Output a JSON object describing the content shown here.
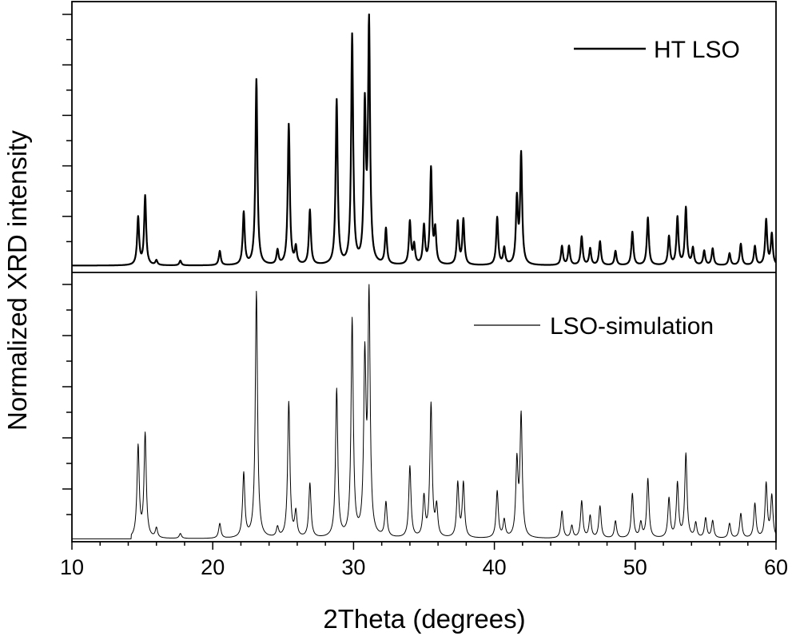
{
  "chart_data": {
    "type": "line",
    "xlabel": "2Theta (degrees)",
    "ylabel": "Normalized XRD intensity",
    "xlim": [
      10,
      60
    ],
    "xticks": [
      10,
      20,
      30,
      40,
      50,
      60
    ],
    "x_minor_step": 2,
    "ylim": [
      0,
      1
    ],
    "y_ticklabels_shown": false,
    "grid": false,
    "legend_location": "top-right of each panel",
    "line_color": "#000000",
    "panels": [
      {
        "legend": "HT LSO",
        "line_weight": "thick",
        "baseline": 0.005,
        "series": [
          {
            "name": "HT LSO",
            "peaks": [
              [
                14.7,
                0.2
              ],
              [
                15.2,
                0.29
              ],
              [
                16.0,
                0.02
              ],
              [
                17.7,
                0.02
              ],
              [
                20.5,
                0.06
              ],
              [
                22.2,
                0.22
              ],
              [
                23.1,
                0.78
              ],
              [
                24.6,
                0.06
              ],
              [
                25.4,
                0.59
              ],
              [
                25.9,
                0.07
              ],
              [
                26.9,
                0.23
              ],
              [
                28.8,
                0.69
              ],
              [
                29.9,
                0.96
              ],
              [
                30.8,
                0.64
              ],
              [
                31.1,
                1.0
              ],
              [
                32.3,
                0.15
              ],
              [
                34.0,
                0.18
              ],
              [
                34.3,
                0.08
              ],
              [
                35.0,
                0.16
              ],
              [
                35.5,
                0.4
              ],
              [
                35.8,
                0.14
              ],
              [
                37.4,
                0.18
              ],
              [
                37.8,
                0.19
              ],
              [
                40.2,
                0.2
              ],
              [
                40.7,
                0.07
              ],
              [
                41.6,
                0.27
              ],
              [
                41.9,
                0.46
              ],
              [
                44.8,
                0.08
              ],
              [
                45.3,
                0.08
              ],
              [
                46.2,
                0.12
              ],
              [
                46.8,
                0.07
              ],
              [
                47.5,
                0.1
              ],
              [
                48.6,
                0.06
              ],
              [
                49.8,
                0.14
              ],
              [
                50.9,
                0.2
              ],
              [
                52.4,
                0.12
              ],
              [
                53.0,
                0.2
              ],
              [
                53.6,
                0.24
              ],
              [
                54.1,
                0.07
              ],
              [
                54.9,
                0.06
              ],
              [
                55.5,
                0.07
              ],
              [
                56.7,
                0.05
              ],
              [
                57.5,
                0.09
              ],
              [
                58.5,
                0.08
              ],
              [
                59.3,
                0.19
              ],
              [
                59.7,
                0.13
              ]
            ]
          }
        ]
      },
      {
        "legend": "LSO-simulation",
        "line_weight": "thin",
        "baseline": 0.005,
        "series": [
          {
            "name": "LSO-simulation",
            "peaks": [
              [
                14.7,
                0.37
              ],
              [
                15.2,
                0.42
              ],
              [
                16.0,
                0.04
              ],
              [
                17.7,
                0.02
              ],
              [
                20.5,
                0.06
              ],
              [
                22.2,
                0.26
              ],
              [
                23.1,
                1.0
              ],
              [
                24.6,
                0.04
              ],
              [
                25.4,
                0.55
              ],
              [
                25.9,
                0.1
              ],
              [
                26.9,
                0.22
              ],
              [
                28.8,
                0.6
              ],
              [
                29.9,
                0.88
              ],
              [
                30.8,
                0.7
              ],
              [
                31.1,
                0.96
              ],
              [
                32.3,
                0.14
              ],
              [
                34.0,
                0.29
              ],
              [
                35.0,
                0.16
              ],
              [
                35.5,
                0.54
              ],
              [
                35.9,
                0.12
              ],
              [
                37.4,
                0.22
              ],
              [
                37.8,
                0.22
              ],
              [
                40.2,
                0.19
              ],
              [
                40.7,
                0.07
              ],
              [
                41.6,
                0.3
              ],
              [
                41.9,
                0.49
              ],
              [
                44.8,
                0.11
              ],
              [
                45.5,
                0.05
              ],
              [
                46.2,
                0.15
              ],
              [
                46.8,
                0.09
              ],
              [
                47.5,
                0.13
              ],
              [
                48.6,
                0.07
              ],
              [
                49.8,
                0.18
              ],
              [
                50.4,
                0.06
              ],
              [
                50.9,
                0.24
              ],
              [
                52.4,
                0.16
              ],
              [
                53.0,
                0.22
              ],
              [
                53.6,
                0.34
              ],
              [
                54.3,
                0.06
              ],
              [
                55.0,
                0.08
              ],
              [
                55.5,
                0.07
              ],
              [
                56.7,
                0.06
              ],
              [
                57.5,
                0.1
              ],
              [
                58.5,
                0.14
              ],
              [
                59.3,
                0.22
              ],
              [
                59.7,
                0.17
              ]
            ]
          }
        ]
      }
    ]
  }
}
